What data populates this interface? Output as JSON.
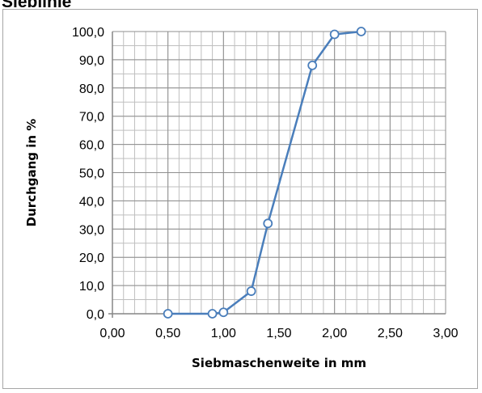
{
  "page": {
    "title": "Sieblinie"
  },
  "chart_data": {
    "type": "line",
    "title": "",
    "xlabel": "Siebmaschenweite in mm",
    "ylabel": "Durchgang in %",
    "xlim": [
      0,
      3
    ],
    "ylim": [
      0,
      100
    ],
    "x_ticks": [
      "0,00",
      "0,50",
      "1,00",
      "1,50",
      "2,00",
      "2,50",
      "3,00"
    ],
    "y_ticks": [
      "0,0",
      "10,0",
      "20,0",
      "30,0",
      "40,0",
      "50,0",
      "60,0",
      "70,0",
      "80,0",
      "90,0",
      "100,0"
    ],
    "x_tick_values": [
      0,
      0.5,
      1,
      1.5,
      2,
      2.5,
      3
    ],
    "y_tick_values": [
      0,
      10,
      20,
      30,
      40,
      50,
      60,
      70,
      80,
      90,
      100
    ],
    "minor_x_step": 0.1,
    "minor_y_step": 5,
    "grid": true,
    "series": [
      {
        "x": [
          0.5,
          0.9,
          1.0,
          1.25,
          1.4,
          1.8,
          2.0,
          2.24
        ],
        "y": [
          0.0,
          0.0,
          0.5,
          8.0,
          32.0,
          88.0,
          99.0,
          100.0
        ]
      }
    ],
    "colors": {
      "line": "#4a7ebb",
      "grid": "#bfbfbf",
      "axis": "#868686"
    }
  }
}
